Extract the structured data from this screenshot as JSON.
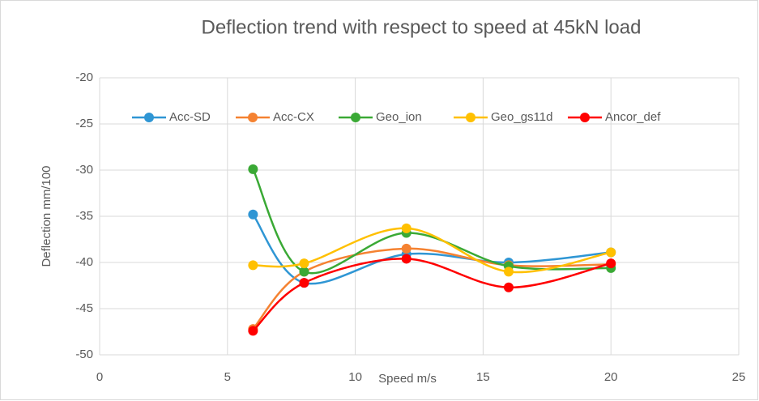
{
  "chart_data": {
    "type": "scatter_smooth",
    "title": "Deflection trend with respect to speed at 45kN load",
    "x_label": "Speed m/s",
    "y_label": "Deflection mm/100",
    "x": [
      6,
      8,
      12,
      16,
      20
    ],
    "series": [
      {
        "name": "Acc-SD",
        "color": "#2f96d4",
        "values": [
          -34.8,
          -42.2,
          -39.1,
          -40.0,
          -38.9
        ]
      },
      {
        "name": "Acc-CX",
        "color": "#f58231",
        "values": [
          -47.2,
          -41.0,
          -38.5,
          -40.3,
          -40.2
        ]
      },
      {
        "name": "Geo_ion",
        "color": "#3aa935",
        "values": [
          -29.9,
          -41.0,
          -36.8,
          -40.4,
          -40.6
        ]
      },
      {
        "name": "Geo_gs11d",
        "color": "#ffc000",
        "values": [
          -40.3,
          -40.1,
          -36.3,
          -41.0,
          -38.9
        ]
      },
      {
        "name": "Ancor_def",
        "color": "#ff0000",
        "values": [
          -47.4,
          -42.2,
          -39.6,
          -42.7,
          -40.1
        ]
      }
    ],
    "xlim": [
      0,
      25
    ],
    "xticks": [
      0,
      5,
      10,
      15,
      20,
      25
    ],
    "ylim": [
      -50,
      -20
    ],
    "yticks": [
      -20,
      -25,
      -30,
      -35,
      -40,
      -45,
      -50
    ],
    "grid": true,
    "legend": "top"
  }
}
